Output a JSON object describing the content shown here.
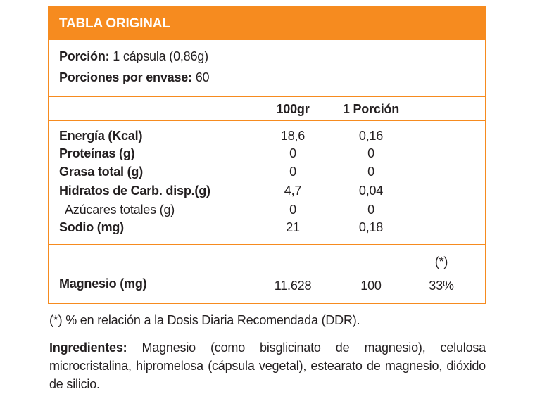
{
  "header": {
    "title": "TABLA ORIGINAL"
  },
  "serving": {
    "portion_label": "Porción:",
    "portion_value": "1 cápsula (0,86g)",
    "servings_label": "Porciones por envase:",
    "servings_value": "60"
  },
  "table": {
    "columns": [
      "100gr",
      "1 Porción"
    ],
    "rows": [
      {
        "label": "Energía (Kcal)",
        "values": [
          "18,6",
          "0,16"
        ]
      },
      {
        "label": "Proteínas (g)",
        "values": [
          "0",
          "0"
        ]
      },
      {
        "label": "Grasa total (g)",
        "values": [
          "0",
          "0"
        ]
      },
      {
        "label": "Hidratos de Carb. disp.(g)",
        "values": [
          "4,7",
          "0,04"
        ]
      },
      {
        "label": "Azúcares totales (g)",
        "values": [
          "0",
          "0"
        ],
        "sub": true
      },
      {
        "label": "Sodio (mg)",
        "values": [
          "21",
          "0,18"
        ]
      }
    ]
  },
  "mineral": {
    "marker": "(*)",
    "label": "Magnesio (mg)",
    "values": [
      "11.628",
      "100",
      "33%"
    ]
  },
  "footnote": "(*) % en relación a la Dosis Diaria Recomendada (DDR).",
  "ingredients": {
    "label": "Ingredientes:",
    "text": "Magnesio (como bisglicinato de magnesio), celulosa microcristalina, hipromelosa (cápsula vegetal), estearato de magnesio, dióxido de silicio."
  }
}
